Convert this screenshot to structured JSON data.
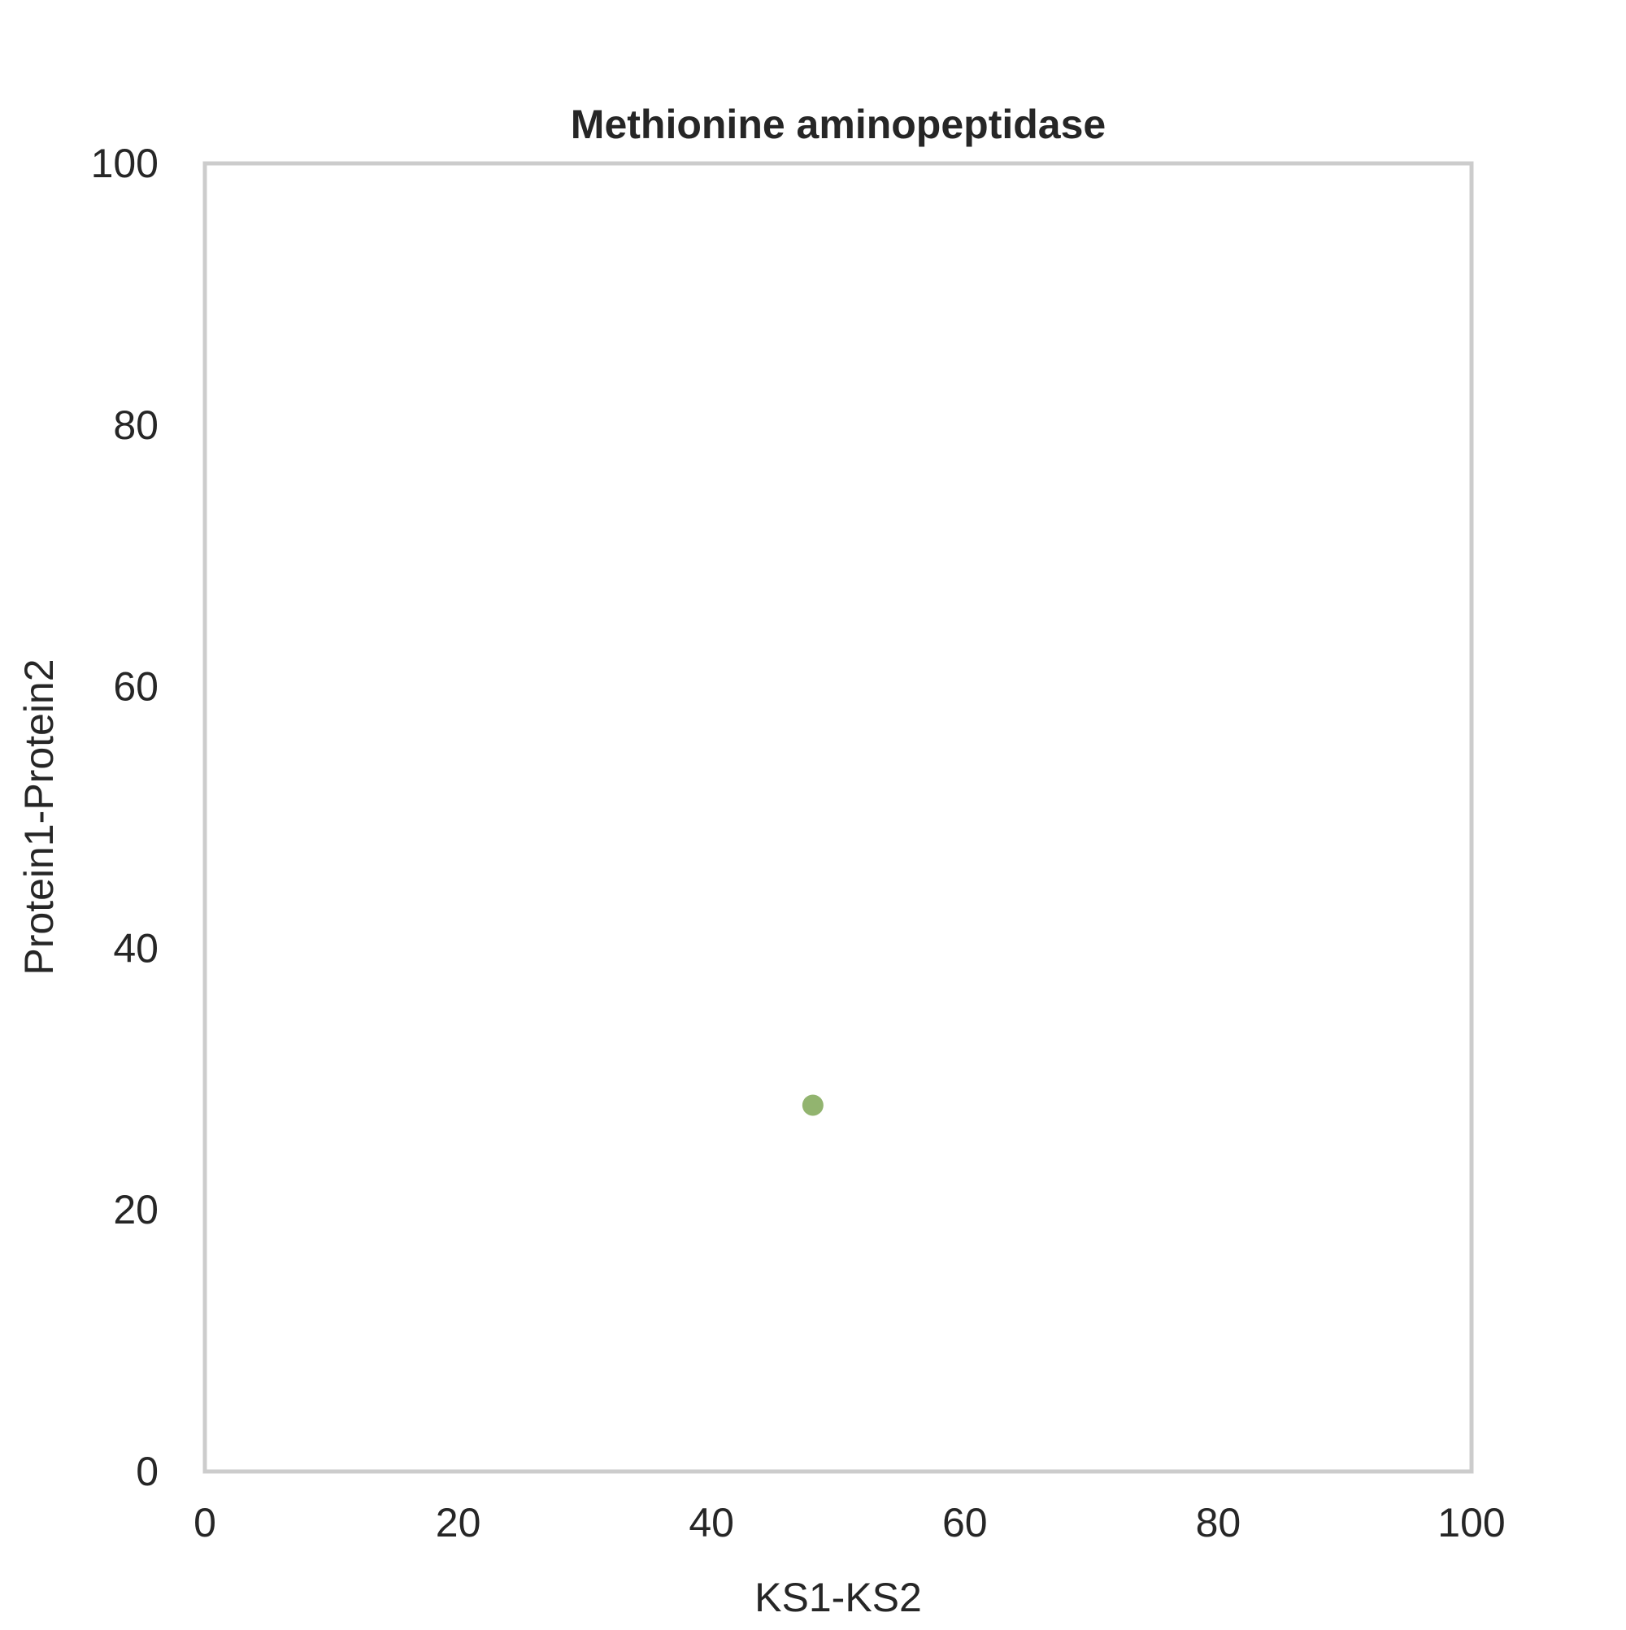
{
  "chart_data": {
    "type": "scatter",
    "title": "Methionine aminopeptidase",
    "xlabel": "KS1-KS2",
    "ylabel": "Protein1-Protein2",
    "xlim": [
      0,
      100
    ],
    "ylim": [
      0,
      100
    ],
    "xticks": [
      "0",
      "20",
      "40",
      "60",
      "80",
      "100"
    ],
    "yticks": [
      "0",
      "20",
      "40",
      "60",
      "80",
      "100"
    ],
    "grid": false,
    "series": [
      {
        "color": "#8cb067",
        "points": [
          {
            "x": 48,
            "y": 28
          }
        ]
      }
    ],
    "colors": {
      "frame": "#cccccc",
      "text": "#262626",
      "background": "#ffffff"
    }
  }
}
